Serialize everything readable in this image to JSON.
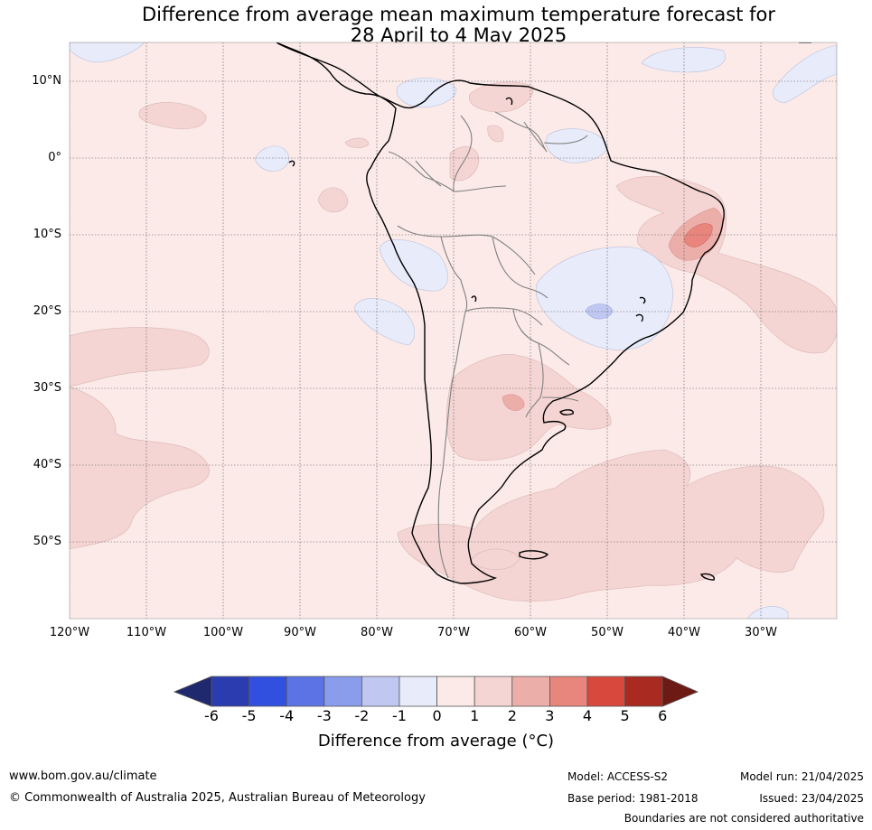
{
  "title": {
    "line1": "Difference from average mean maximum temperature forecast for",
    "line2": "28 April to 4 May 2025"
  },
  "map": {
    "region": "South America",
    "lat_labels": [
      "10°N",
      "0°",
      "10°S",
      "20°S",
      "30°S",
      "40°S",
      "50°S"
    ],
    "lon_labels": [
      "120°W",
      "110°W",
      "100°W",
      "90°W",
      "80°W",
      "70°W",
      "60°W",
      "50°W",
      "40°W",
      "30°W"
    ],
    "background_color": "#fbeae8",
    "gridlines": true
  },
  "colorbar": {
    "ticks": [
      "-6",
      "-5",
      "-4",
      "-3",
      "-2",
      "-1",
      "0",
      "1",
      "2",
      "3",
      "4",
      "5",
      "6"
    ],
    "colors": {
      "below_-6": "#1f2a6e",
      "-6_-5": "#2b3cb0",
      "-5_-4": "#3250e0",
      "-4_-3": "#5b73e4",
      "-3_-2": "#8a9cec",
      "-2_-1": "#c0c8f2",
      "-1_0": "#e8ebfa",
      "0_1": "#fbeae8",
      "1_2": "#f4d5d3",
      "2_3": "#ecaea9",
      "3_4": "#e8857d",
      "4_5": "#d9483d",
      "5_6": "#a82a20",
      "above_6": "#6e1a14"
    },
    "label": "Difference from average (°C)"
  },
  "footer": {
    "website": "www.bom.gov.au/climate",
    "copyright": "© Commonwealth of Australia 2025, Australian Bureau of Meteorology",
    "model": "Model: ACCESS-S2",
    "base_period": "Base period: 1981-2018",
    "model_run": "Model run: 21/04/2025",
    "issued": "Issued: 23/04/2025",
    "disclaimer": "Boundaries are not considered authoritative"
  }
}
